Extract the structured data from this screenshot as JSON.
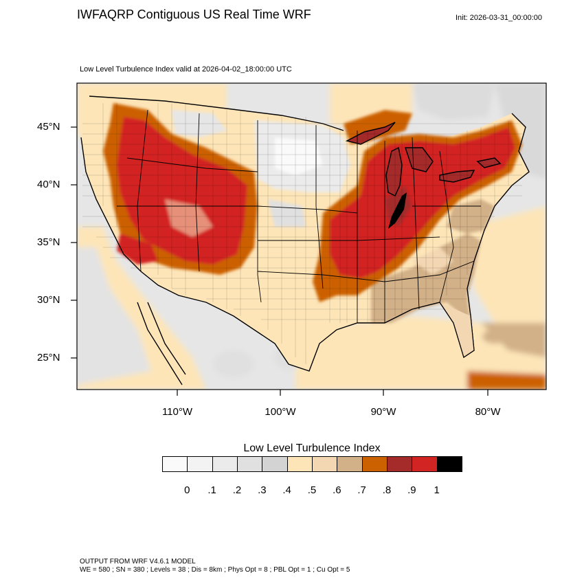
{
  "header": {
    "title": "IWFAQRP Contiguous US Real Time WRF",
    "init": "Init: 2026-03-31_00:00:00",
    "subtitle": "Low Level Turbulence Index valid at 2026-04-02_18:00:00 UTC"
  },
  "map": {
    "lat_labels": [
      "45°N",
      "40°N",
      "35°N",
      "30°N",
      "25°N"
    ],
    "lon_labels": [
      "110°W",
      "100°W",
      "90°W",
      "80°W"
    ]
  },
  "legend": {
    "title": "Low Level Turbulence Index",
    "labels": [
      "0",
      ".1",
      ".2",
      ".3",
      ".4",
      ".5",
      ".6",
      ".7",
      ".8",
      ".9",
      "1"
    ],
    "colors": [
      "#fafafa",
      "#f3f3f3",
      "#ebebeb",
      "#e0e0e0",
      "#d3d3d3",
      "#fde5b8",
      "#f3d7b3",
      "#d2b088",
      "#cc6100",
      "#a52a2a",
      "#d32424",
      "#000000"
    ]
  },
  "footer": {
    "line1": "OUTPUT FROM WRF V4.6.1 MODEL",
    "line2": "WE = 580 ; SN = 380 ; Levels = 38 ; Dis = 8km ; Phys Opt = 8 ; PBL Opt = 1 ; Cu Opt = 5"
  }
}
